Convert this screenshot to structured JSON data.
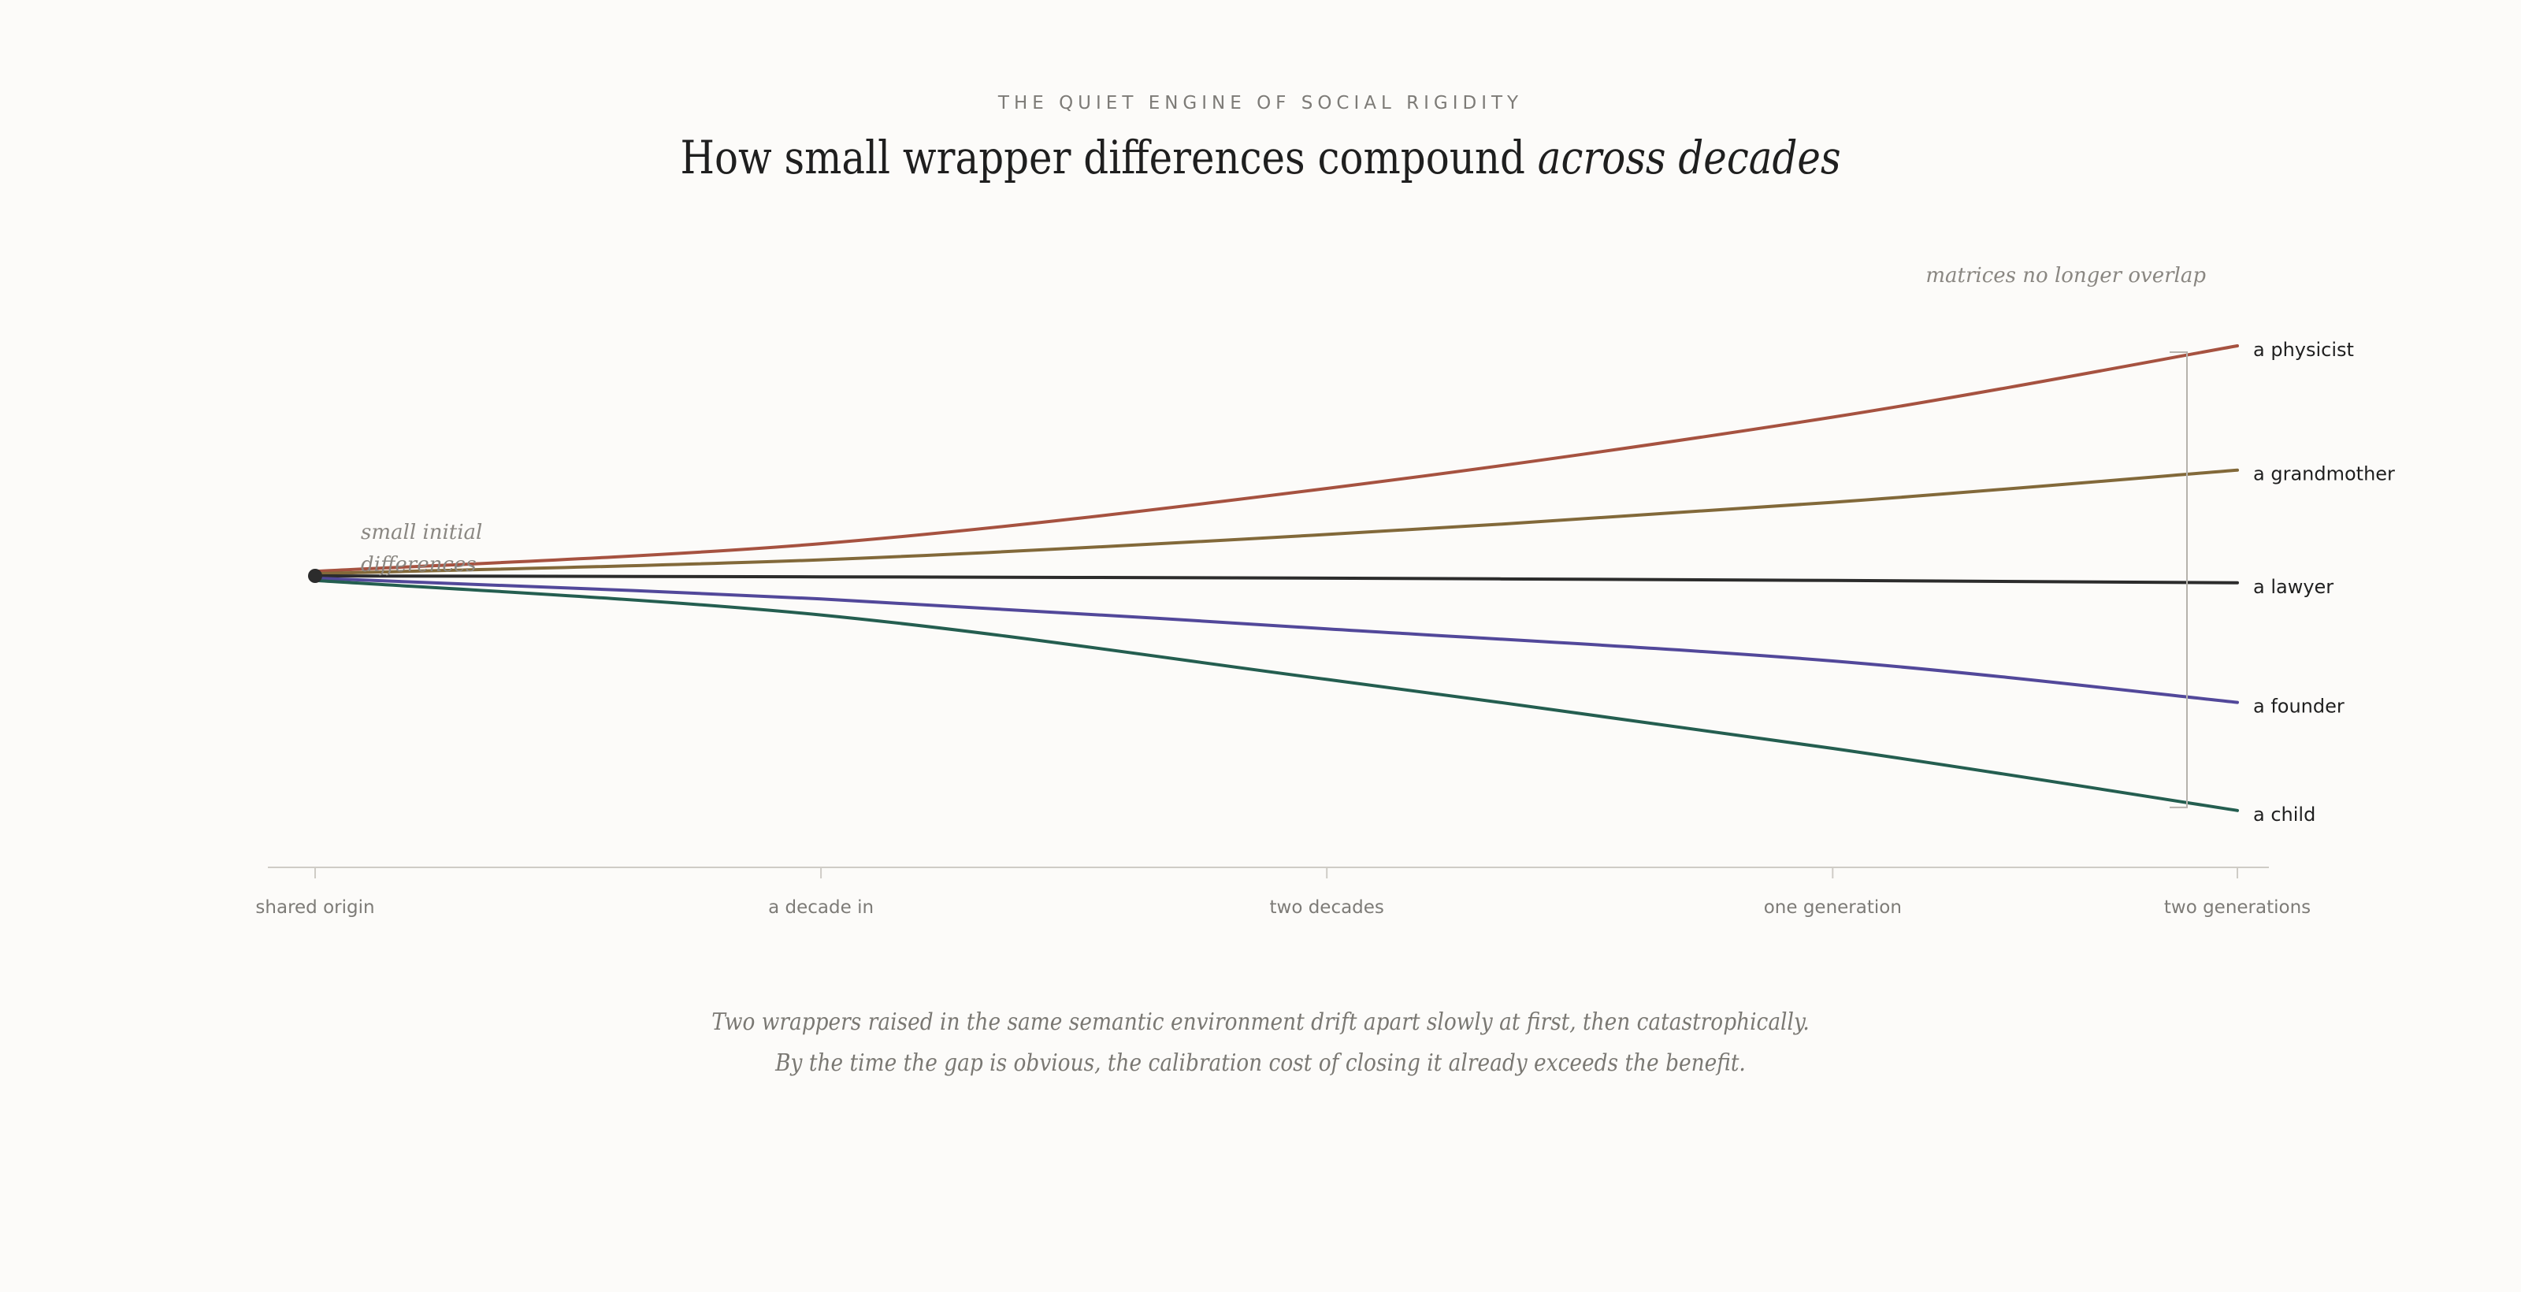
{
  "header": {
    "kicker": "THE QUIET ENGINE OF SOCIAL RIGIDITY",
    "title_main": "How small wrapper differences compound ",
    "title_emphasis": "across decades"
  },
  "chart_data": {
    "type": "line",
    "title": "How small wrapper differences compound across decades",
    "xlabel": "",
    "ylabel": "",
    "categories": [
      "shared origin",
      "a decade in",
      "two decades",
      "one generation",
      "two generations"
    ],
    "x": [
      0,
      1,
      2,
      3,
      3.8
    ],
    "xlim": [
      0,
      3.8
    ],
    "ylim": [
      -1.18,
      1.18
    ],
    "grid": false,
    "series": [
      {
        "name": "a physicist",
        "color": "#a65240",
        "values": [
          0.02,
          0.14,
          0.38,
          0.69,
          1.0
        ]
      },
      {
        "name": "a grandmother",
        "color": "#82693a",
        "values": [
          0.01,
          0.07,
          0.18,
          0.32,
          0.46
        ]
      },
      {
        "name": "a lawyer",
        "color": "#2c2c2c",
        "values": [
          0.0,
          -0.004,
          -0.01,
          -0.02,
          -0.03
        ]
      },
      {
        "name": "a founder",
        "color": "#52489a",
        "values": [
          -0.01,
          -0.1,
          -0.23,
          -0.37,
          -0.55
        ]
      },
      {
        "name": "a child",
        "color": "#245e50",
        "values": [
          -0.02,
          -0.17,
          -0.45,
          -0.75,
          -1.02
        ]
      }
    ],
    "annotations": [
      {
        "text": "small initial differences",
        "lines": [
          "small initial",
          "differences"
        ],
        "near": "origin"
      },
      {
        "text": "matrices no longer overlap",
        "near": "end"
      }
    ]
  },
  "caption": {
    "line1": "Two wrappers raised in the same semantic environment drift apart slowly at first, then catastrophically.",
    "line2": "By the time the gap is obvious, the calibration cost of closing it already exceeds the benefit."
  }
}
